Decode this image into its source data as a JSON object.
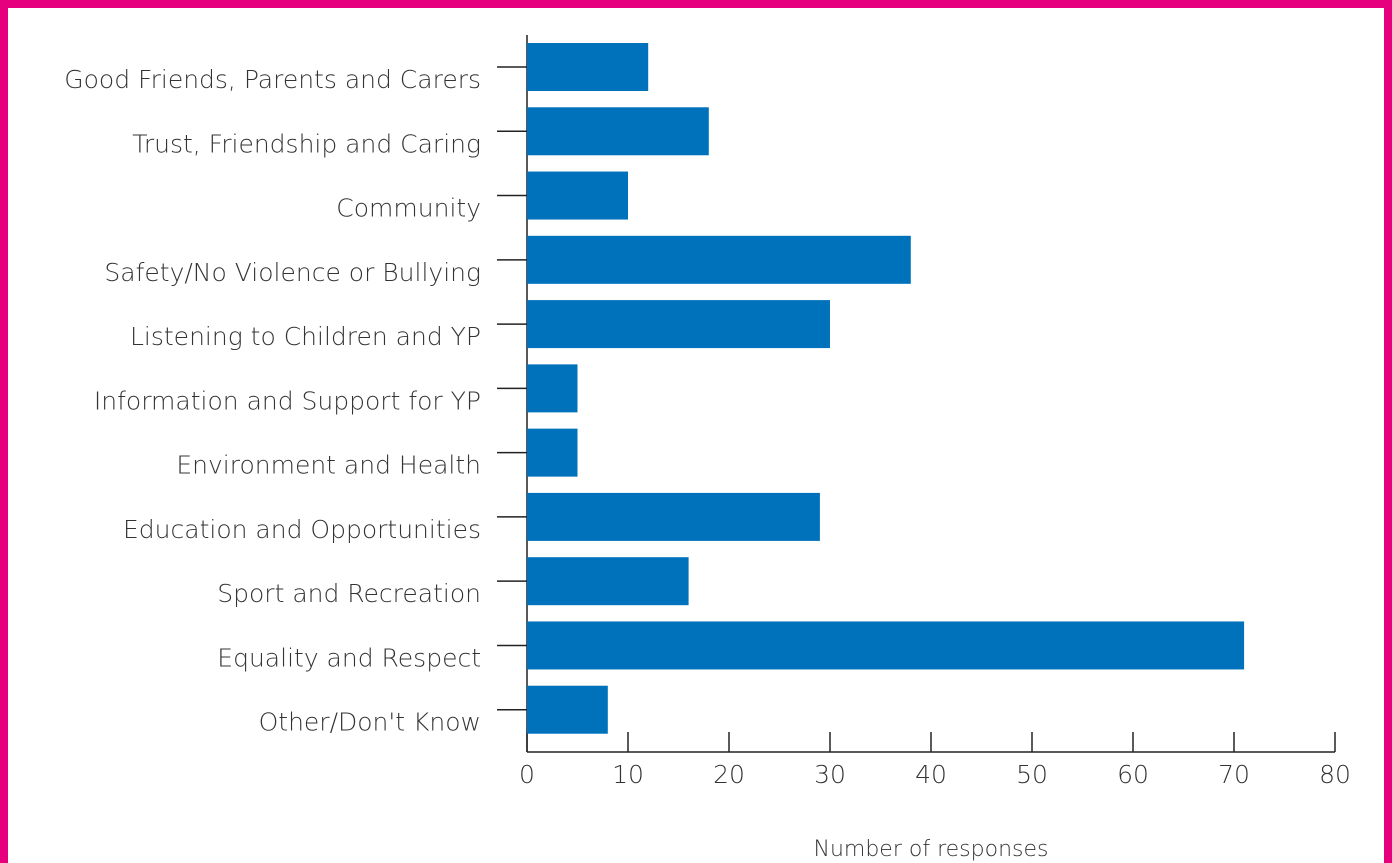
{
  "chart_data": {
    "type": "bar",
    "orientation": "horizontal",
    "categories": [
      "Good Friends, Parents and Carers",
      "Trust, Friendship and Caring",
      "Community",
      "Safety/No Violence or Bullying",
      "Listening to Children and YP",
      "Information and Support for YP",
      "Environment and Health",
      "Education and Opportunities",
      "Sport and Recreation",
      "Equality and Respect",
      "Other/Don't Know"
    ],
    "values": [
      12,
      18,
      10,
      38,
      30,
      5,
      5,
      29,
      16,
      71,
      8
    ],
    "color": "#0072bc",
    "xlim": [
      0,
      80
    ],
    "xticks": [
      0,
      10,
      20,
      30,
      40,
      50,
      60,
      70,
      80
    ],
    "xlabel": "Number of responses",
    "grid": false
  }
}
